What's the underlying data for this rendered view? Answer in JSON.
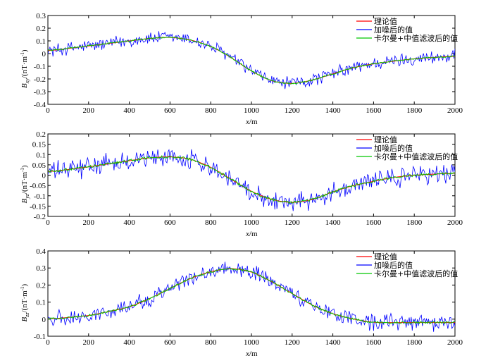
{
  "colors": {
    "theory": "#ff0000",
    "noisy": "#0000ff",
    "filtered": "#00c800",
    "axis": "#000000"
  },
  "chart_data": [
    {
      "type": "line",
      "xlabel_var": "x",
      "xlabel_unit": "/m",
      "ylabel_var": "B",
      "ylabel_sub": "xy",
      "ylabel_unit": "/(nT·m",
      "ylabel_sup": "-1",
      "ylabel_close": ")",
      "xlim": [
        0,
        2000
      ],
      "ylim": [
        -0.4,
        0.3
      ],
      "xticks": [
        0,
        200,
        400,
        600,
        800,
        1000,
        1200,
        1400,
        1600,
        1800,
        2000
      ],
      "yticks": [
        -0.4,
        -0.3,
        -0.2,
        -0.1,
        0,
        0.1,
        0.2,
        0.3
      ],
      "ytick_labels": [
        "-0.4",
        "-0.3",
        "-0.2",
        "-0.1",
        "0",
        "0.1",
        "0.2",
        "0.3"
      ],
      "legend_position": "top-right",
      "noise_amplitude": 0.045,
      "series": [
        {
          "name": "理论值",
          "color": "#ff0000",
          "x": [
            0,
            200,
            400,
            500,
            600,
            700,
            800,
            900,
            1000,
            1100,
            1200,
            1300,
            1400,
            1500,
            1600,
            1700,
            1800,
            1900,
            2000
          ],
          "y": [
            0.02,
            0.06,
            0.1,
            0.12,
            0.13,
            0.11,
            0.06,
            -0.03,
            -0.14,
            -0.22,
            -0.24,
            -0.21,
            -0.16,
            -0.11,
            -0.08,
            -0.06,
            -0.04,
            -0.03,
            -0.02
          ]
        },
        {
          "name": "加噪后的值",
          "color": "#0000ff"
        },
        {
          "name": "卡尔曼+中值滤波后的值",
          "color": "#00c800"
        }
      ]
    },
    {
      "type": "line",
      "xlabel_var": "x",
      "xlabel_unit": "/m",
      "ylabel_var": "B",
      "ylabel_sub": "yz",
      "ylabel_unit": "/(nT·m",
      "ylabel_sup": "-1",
      "ylabel_close": ")",
      "xlim": [
        0,
        2000
      ],
      "ylim": [
        -0.2,
        0.2
      ],
      "xticks": [
        0,
        200,
        400,
        600,
        800,
        1000,
        1200,
        1400,
        1600,
        1800,
        2000
      ],
      "yticks": [
        -0.2,
        -0.15,
        -0.1,
        -0.05,
        0,
        0.05,
        0.1,
        0.15,
        0.2
      ],
      "ytick_labels": [
        "-0.2",
        "-0.15",
        "-0.1",
        "-0.05",
        "0",
        "0.05",
        "0.1",
        "0.15",
        "0.2"
      ],
      "legend_position": "top-right",
      "noise_amplitude": 0.04,
      "series": [
        {
          "name": "理论值",
          "color": "#ff0000",
          "x": [
            0,
            200,
            400,
            500,
            600,
            700,
            800,
            900,
            1000,
            1100,
            1200,
            1300,
            1400,
            1500,
            1600,
            1700,
            1800,
            1900,
            2000
          ],
          "y": [
            0.015,
            0.04,
            0.07,
            0.085,
            0.09,
            0.08,
            0.04,
            -0.02,
            -0.08,
            -0.12,
            -0.135,
            -0.12,
            -0.08,
            -0.05,
            -0.03,
            -0.01,
            0.0,
            0.005,
            0.01
          ]
        },
        {
          "name": "加噪后的值",
          "color": "#0000ff"
        },
        {
          "name": "卡尔曼+中值滤波后的值",
          "color": "#00c800"
        }
      ]
    },
    {
      "type": "line",
      "xlabel_var": "x",
      "xlabel_unit": "/m",
      "ylabel_var": "B",
      "ylabel_sub": "zz",
      "ylabel_unit": "/(nT·m",
      "ylabel_sup": "-1",
      "ylabel_close": ")",
      "xlim": [
        0,
        2000
      ],
      "ylim": [
        -0.1,
        0.4
      ],
      "xticks": [
        0,
        200,
        400,
        600,
        800,
        1000,
        1200,
        1400,
        1600,
        1800,
        2000
      ],
      "yticks": [
        -0.1,
        0,
        0.1,
        0.2,
        0.3,
        0.4
      ],
      "ytick_labels": [
        "-0.1",
        "0",
        "0.1",
        "0.2",
        "0.3",
        "0.4"
      ],
      "legend_position": "top-right",
      "noise_amplitude": 0.04,
      "series": [
        {
          "name": "理论值",
          "color": "#ff0000",
          "x": [
            0,
            200,
            400,
            500,
            600,
            700,
            800,
            900,
            1000,
            1100,
            1200,
            1300,
            1400,
            1500,
            1600,
            1700,
            1800,
            1900,
            2000
          ],
          "y": [
            0.0,
            0.02,
            0.07,
            0.12,
            0.18,
            0.24,
            0.28,
            0.3,
            0.28,
            0.22,
            0.15,
            0.08,
            0.03,
            0.0,
            -0.02,
            -0.02,
            -0.02,
            -0.02,
            -0.02
          ]
        },
        {
          "name": "加噪后的值",
          "color": "#0000ff"
        },
        {
          "name": "卡尔曼+中值滤波后的值",
          "color": "#00c800"
        }
      ]
    }
  ]
}
